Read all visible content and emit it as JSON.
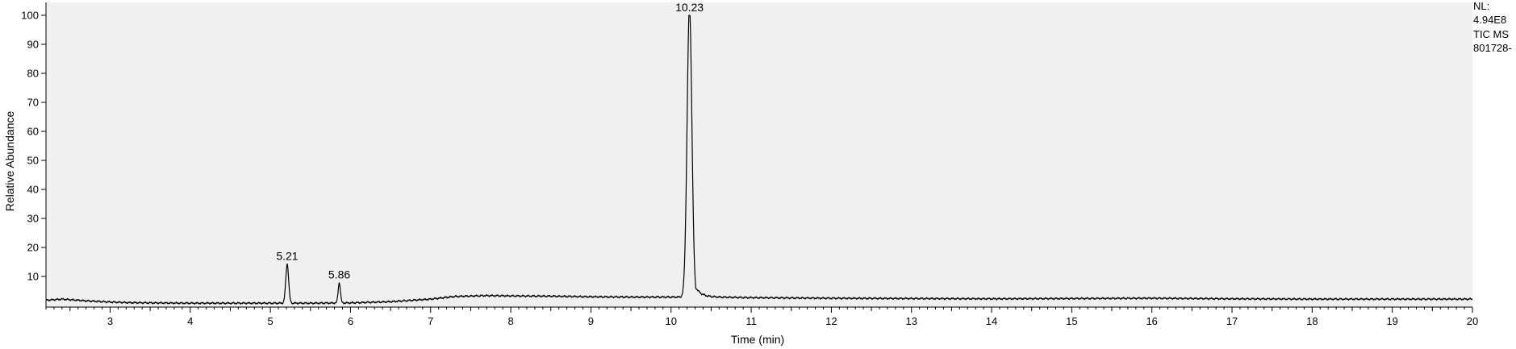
{
  "chart_data": {
    "type": "line",
    "title": "",
    "xlabel": "Time (min)",
    "ylabel": "Relative Abundance",
    "xlim": [
      2.2,
      20
    ],
    "ylim": [
      0,
      100
    ],
    "x_ticks": [
      3,
      4,
      5,
      6,
      7,
      8,
      9,
      10,
      11,
      12,
      13,
      14,
      15,
      16,
      17,
      18,
      19,
      20
    ],
    "y_ticks": [
      10,
      20,
      30,
      40,
      50,
      60,
      70,
      80,
      90,
      100
    ],
    "grid": false,
    "baseline_points": [
      {
        "x": 2.2,
        "y": 1.8
      },
      {
        "x": 2.4,
        "y": 2.2
      },
      {
        "x": 2.7,
        "y": 1.6
      },
      {
        "x": 3.0,
        "y": 1.2
      },
      {
        "x": 3.2,
        "y": 1.0
      },
      {
        "x": 3.5,
        "y": 0.9
      },
      {
        "x": 4.0,
        "y": 0.8
      },
      {
        "x": 4.5,
        "y": 0.8
      },
      {
        "x": 5.0,
        "y": 0.8
      },
      {
        "x": 5.5,
        "y": 0.8
      },
      {
        "x": 6.0,
        "y": 0.9
      },
      {
        "x": 6.5,
        "y": 1.3
      },
      {
        "x": 7.0,
        "y": 2.2
      },
      {
        "x": 7.3,
        "y": 3.1
      },
      {
        "x": 7.7,
        "y": 3.4
      },
      {
        "x": 8.0,
        "y": 3.3
      },
      {
        "x": 8.5,
        "y": 3.2
      },
      {
        "x": 9.0,
        "y": 3.0
      },
      {
        "x": 9.5,
        "y": 2.9
      },
      {
        "x": 10.0,
        "y": 2.9
      },
      {
        "x": 10.5,
        "y": 2.9
      },
      {
        "x": 11.0,
        "y": 2.7
      },
      {
        "x": 12.0,
        "y": 2.5
      },
      {
        "x": 13.0,
        "y": 2.4
      },
      {
        "x": 14.0,
        "y": 2.3
      },
      {
        "x": 15.0,
        "y": 2.4
      },
      {
        "x": 16.0,
        "y": 2.5
      },
      {
        "x": 17.0,
        "y": 2.3
      },
      {
        "x": 18.0,
        "y": 2.2
      },
      {
        "x": 19.0,
        "y": 2.2
      },
      {
        "x": 20.0,
        "y": 2.2
      }
    ],
    "peaks": [
      {
        "rt": 5.21,
        "label": "5.21",
        "height": 13.5,
        "width": 0.018
      },
      {
        "rt": 5.86,
        "label": "5.86",
        "height": 7.0,
        "width": 0.014
      },
      {
        "rt": 10.23,
        "label": "10.23",
        "height": 100,
        "width": 0.03,
        "tail": 0.07
      }
    ],
    "annotations": {
      "nl_label": "NL:",
      "nl_value": "4.94E8",
      "scan_type": "TIC  MS",
      "file_name": "801728-"
    }
  }
}
